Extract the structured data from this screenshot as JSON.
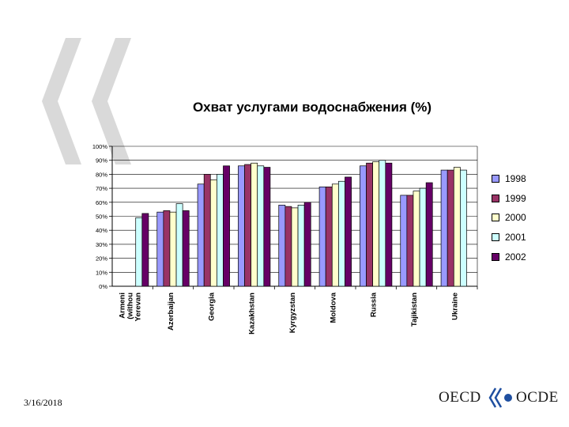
{
  "colors": {
    "watermark": "#d9d9d9",
    "series": [
      "#9999ff",
      "#993366",
      "#ffffcc",
      "#ccffff",
      "#660066"
    ],
    "logo_accent": "#1f4fa0"
  },
  "footer": {
    "date": "3/16/2018"
  },
  "logo": {
    "left_text": "OECD",
    "right_text": "OCDE"
  },
  "chart_data": {
    "type": "bar",
    "title": "Охват услугами водоснабжения (%)",
    "categories": [
      "Armeni (withou Yerevan",
      "Azerbaijan",
      "Georgia",
      "Kazakhstan",
      "Kyrgyzstan",
      "Moldova",
      "Russia",
      "Tajikistan",
      "Ukraine"
    ],
    "series": [
      {
        "name": "1998",
        "values": [
          null,
          53,
          73,
          86,
          58,
          71,
          86,
          65,
          83
        ]
      },
      {
        "name": "1999",
        "values": [
          null,
          54,
          80,
          87,
          57,
          71,
          88,
          65,
          83
        ]
      },
      {
        "name": "2000",
        "values": [
          null,
          53,
          76,
          88,
          56,
          73,
          89,
          68,
          85
        ]
      },
      {
        "name": "2001",
        "values": [
          49,
          59,
          80,
          86,
          58,
          75,
          90,
          70,
          83
        ]
      },
      {
        "name": "2002",
        "values": [
          52,
          54,
          86,
          85,
          60,
          78,
          88,
          74,
          null
        ]
      }
    ],
    "y_ticks": [
      "0%",
      "10%",
      "20%",
      "30%",
      "40%",
      "50%",
      "60%",
      "70%",
      "80%",
      "90%",
      "100%"
    ],
    "ylim": [
      0,
      100
    ],
    "grid": true,
    "legend": "right"
  }
}
